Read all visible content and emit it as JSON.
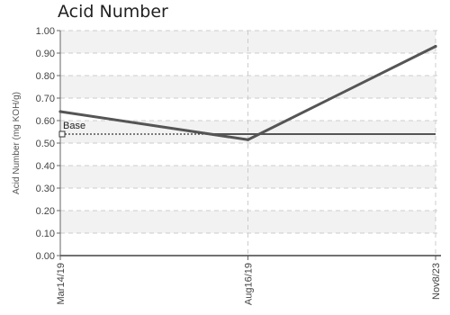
{
  "chart_data": {
    "type": "line",
    "title": "Acid Number",
    "xlabel": "",
    "ylabel": "Acid Number (mg KOH/g)",
    "categories": [
      "Mar14/19",
      "Aug16/19",
      "Nov8/23"
    ],
    "series": [
      {
        "values": [
          0.64,
          0.515,
          0.93
        ]
      }
    ],
    "baseline": {
      "label": "Base",
      "value": 0.54
    },
    "ylim": [
      0,
      1
    ],
    "yticks": [
      0.0,
      0.1,
      0.2,
      0.3,
      0.4,
      0.5,
      0.6,
      0.7,
      0.8,
      0.9,
      1.0
    ],
    "ytick_labels": [
      "0.00",
      "0.10",
      "0.20",
      "0.30",
      "0.40",
      "0.50",
      "0.60",
      "0.70",
      "0.80",
      "0.90",
      "1.00"
    ],
    "grid": true,
    "colors": {
      "series": "#555555",
      "baseline": "#555555",
      "band": "#f2f2f2",
      "grid": "#cccccc"
    }
  }
}
